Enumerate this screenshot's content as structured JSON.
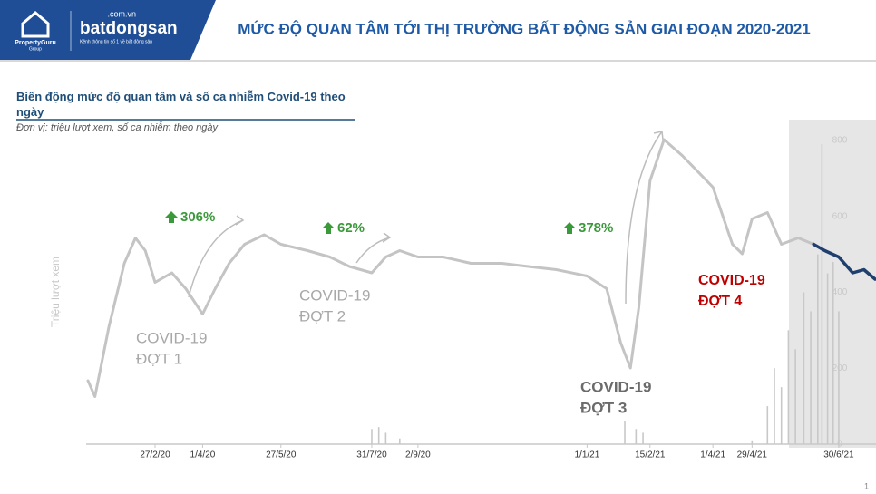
{
  "header": {
    "brand1": "PropertyGuru",
    "brand1_sub": "Group",
    "brand2_domain": ".com.vn",
    "brand2": "batdongsan",
    "brand2_tagline": "Kênh thông tin số 1 về bất động sản",
    "title": "MỨC ĐỘ QUAN TÂM TỚI THỊ TRƯỜNG BẤT ĐỘNG SẢN GIAI ĐOẠN 2020-2021"
  },
  "page_number": "1",
  "chart_data": {
    "type": "line",
    "title": "Biến động mức độ quan tâm và số ca nhiễm Covid-19 theo ngày",
    "subtitle": "Đơn vị: triệu lượt xem, số ca nhiễm theo ngày",
    "ylabel": "Triệu lượt xem",
    "xlim": [
      "10/1/20",
      "26/7/21"
    ],
    "xticks": [
      "27/2/20",
      "1/4/20",
      "27/5/20",
      "31/7/20",
      "2/9/20",
      "1/1/21",
      "15/2/21",
      "1/4/21",
      "29/4/21",
      "30/6/21"
    ],
    "ylim": [
      0,
      100
    ],
    "y2lim": [
      0,
      800
    ],
    "y2ticks": [
      0,
      200,
      400,
      600,
      800
    ],
    "series": [
      {
        "color": "#c4c4c4",
        "x": [
          "10/1/20",
          "15/1/20",
          "25/1/20",
          "5/2/20",
          "13/2/20",
          "20/2/20",
          "27/2/20",
          "10/3/20",
          "20/3/20",
          "1/4/20",
          "10/4/20",
          "20/4/20",
          "1/5/20",
          "15/5/20",
          "27/5/20",
          "15/6/20",
          "1/7/20",
          "15/7/20",
          "31/7/20",
          "10/8/20",
          "20/8/20",
          "2/9/20",
          "20/9/20",
          "10/10/20",
          "1/11/20",
          "20/11/20",
          "10/12/20",
          "1/1/21",
          "15/1/21",
          "25/1/21",
          "1/2/21",
          "7/2/21",
          "15/2/21",
          "25/2/21",
          "10/3/21",
          "1/4/21",
          "15/4/21",
          "22/4/21",
          "29/4/21",
          "10/5/21",
          "20/5/21",
          "1/6/21",
          "12/6/21"
        ],
        "values": [
          20,
          15,
          37,
          57,
          65,
          61,
          51,
          54,
          49,
          41,
          49,
          57,
          63,
          66,
          63,
          61,
          59,
          56,
          54,
          59,
          61,
          59,
          59,
          57,
          57,
          56,
          55,
          53,
          49,
          32,
          24,
          43,
          83,
          96,
          91,
          81,
          63,
          60,
          71,
          73,
          63,
          65,
          63
        ]
      },
      {
        "color": "#1f3f6e",
        "x": [
          "12/6/21",
          "20/6/21",
          "30/6/21",
          "10/7/21",
          "18/7/21",
          "26/7/21"
        ],
        "values": [
          63,
          61,
          59,
          54,
          55,
          52
        ]
      },
      {
        "type": "bar",
        "axis": "y2",
        "color": "#c8c8c8",
        "x": [
          "31/7/20",
          "5/8/20",
          "10/8/20",
          "20/8/20",
          "28/1/21",
          "5/2/21",
          "10/2/21",
          "29/4/21",
          "10/5/21",
          "15/5/21",
          "20/5/21",
          "25/5/21",
          "30/5/21",
          "5/6/21",
          "10/6/21",
          "15/6/21",
          "18/6/21",
          "22/6/21",
          "26/6/21",
          "30/6/21"
        ],
        "values": [
          40,
          45,
          30,
          15,
          60,
          40,
          30,
          10,
          100,
          200,
          150,
          300,
          250,
          400,
          350,
          500,
          790,
          450,
          480,
          350
        ]
      }
    ],
    "annotations": [
      {
        "lines": [
          "306%"
        ],
        "color": "#3a9a3a"
      },
      {
        "lines": [
          "62%"
        ],
        "color": "#3a9a3a"
      },
      {
        "lines": [
          "378%"
        ],
        "color": "#3a9a3a"
      },
      {
        "lines": [
          "COVID-19",
          "ĐỢT 1"
        ],
        "color": "#a8a8a8"
      },
      {
        "lines": [
          "COVID-19",
          "ĐỢT 2"
        ],
        "color": "#a8a8a8"
      },
      {
        "lines": [
          "COVID-19",
          "ĐỢT 3"
        ],
        "color": "#6b6b6b"
      },
      {
        "lines": [
          "COVID-19",
          "ĐỢT 4"
        ],
        "color": "#c00000"
      }
    ]
  }
}
